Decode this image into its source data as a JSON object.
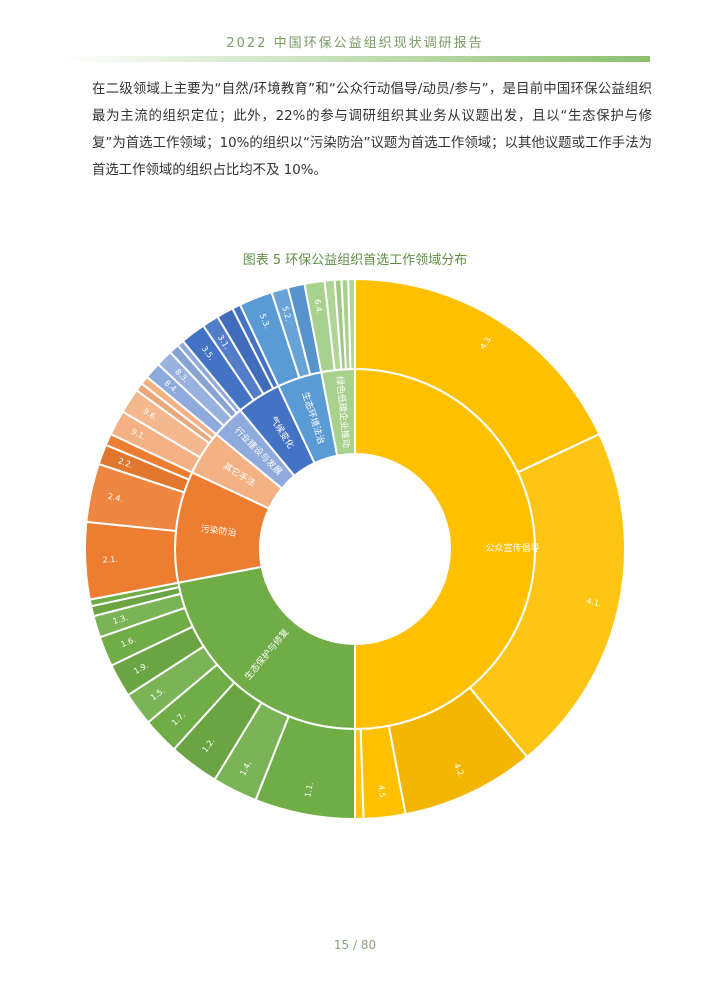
{
  "header": {
    "title": "2022 中国环保公益组织现状调研报告"
  },
  "body_text": "在二级领域上主要为“自然/环境教育”和“公众行动倡导/动员/参与”，是目前中国环保公益组织最为主流的组织定位；此外，22%的参与调研组织其业务从议题出发，且以“生态保护与修复”为首选工作领域；10%的组织以“污染防治”议题为首选工作领域；以其他议题或工作手法为首选工作领域的组织占比均不及 10%。",
  "figure": {
    "caption": "图表 5 环保公益组织首选工作领域分布"
  },
  "footer": {
    "page": "15 / 80"
  },
  "chart_data": {
    "type": "sunburst",
    "unit": "percent",
    "inner": [
      {
        "label": "公众宣传倡导",
        "value": 50,
        "color": "#ffc000"
      },
      {
        "label": "生态保护与修复",
        "value": 22,
        "color": "#70ad47"
      },
      {
        "label": "污染防治",
        "value": 10,
        "color": "#ed7d31"
      },
      {
        "label": "其它手法",
        "value": 4,
        "color": "#f4b183"
      },
      {
        "label": "行业建设与发展",
        "value": 3,
        "color": "#8faadc"
      },
      {
        "label": "气候变化",
        "value": 4,
        "color": "#4472c4"
      },
      {
        "label": "生态环境法治",
        "value": 4,
        "color": "#5b9bd5"
      },
      {
        "label": "绿色低碳企业推动",
        "value": 3,
        "color": "#a9d18e"
      }
    ],
    "outer": [
      {
        "parent": 0,
        "label": "4.3.",
        "value": 18
      },
      {
        "parent": 0,
        "label": "4.1.",
        "value": 21
      },
      {
        "parent": 0,
        "label": "4.2.",
        "value": 8
      },
      {
        "parent": 0,
        "label": "4.5.",
        "value": 2.5
      },
      {
        "parent": 0,
        "label": "",
        "value": 0.5
      },
      {
        "parent": 1,
        "label": "1.1.",
        "value": 6
      },
      {
        "parent": 1,
        "label": "1.4.",
        "value": 2.7
      },
      {
        "parent": 1,
        "label": "1.2.",
        "value": 3
      },
      {
        "parent": 1,
        "label": "1.7.",
        "value": 2.2
      },
      {
        "parent": 1,
        "label": "1.5.",
        "value": 2
      },
      {
        "parent": 1,
        "label": "1.9.",
        "value": 2
      },
      {
        "parent": 1,
        "label": "1.6.",
        "value": 1.8
      },
      {
        "parent": 1,
        "label": "1.3.",
        "value": 1.3
      },
      {
        "parent": 1,
        "label": "",
        "value": 0.6
      },
      {
        "parent": 1,
        "label": "",
        "value": 0.4
      },
      {
        "parent": 2,
        "label": "2.1.",
        "value": 4.6
      },
      {
        "parent": 2,
        "label": "2.4.",
        "value": 3.5
      },
      {
        "parent": 2,
        "label": "2.2.",
        "value": 1.2
      },
      {
        "parent": 2,
        "label": "",
        "value": 0.7
      },
      {
        "parent": 3,
        "label": "9.1.",
        "value": 1.5
      },
      {
        "parent": 3,
        "label": "9.6.",
        "value": 1.5
      },
      {
        "parent": 3,
        "label": "",
        "value": 0.5
      },
      {
        "parent": 3,
        "label": "",
        "value": 0.5
      },
      {
        "parent": 4,
        "label": "8.4.",
        "value": 1
      },
      {
        "parent": 4,
        "label": "8.3.",
        "value": 1
      },
      {
        "parent": 4,
        "label": "",
        "value": 0.6
      },
      {
        "parent": 4,
        "label": "",
        "value": 0.4
      },
      {
        "parent": 5,
        "label": "3.5.",
        "value": 1.5
      },
      {
        "parent": 5,
        "label": "3.1.",
        "value": 1
      },
      {
        "parent": 5,
        "label": "",
        "value": 1
      },
      {
        "parent": 5,
        "label": "",
        "value": 0.5
      },
      {
        "parent": 6,
        "label": "5.3.",
        "value": 2
      },
      {
        "parent": 6,
        "label": "5.2.",
        "value": 1
      },
      {
        "parent": 6,
        "label": "",
        "value": 1
      },
      {
        "parent": 7,
        "label": "6.4.",
        "value": 1.2
      },
      {
        "parent": 7,
        "label": "",
        "value": 0.6
      },
      {
        "parent": 7,
        "label": "",
        "value": 0.4
      },
      {
        "parent": 7,
        "label": "",
        "value": 0.4
      },
      {
        "parent": 7,
        "label": "",
        "value": 0.4
      }
    ]
  }
}
